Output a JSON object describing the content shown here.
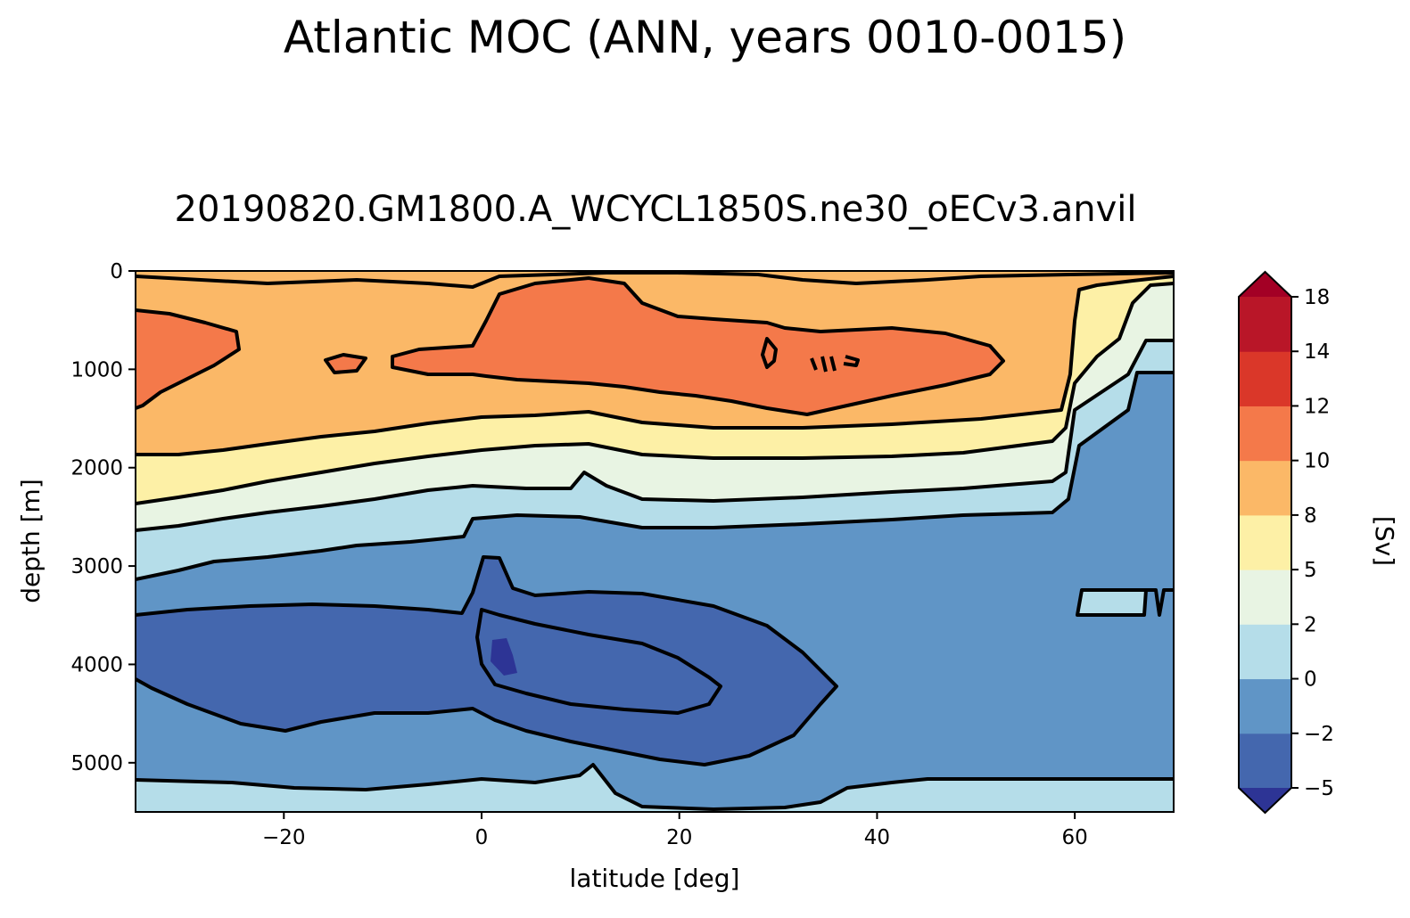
{
  "figure": {
    "title": "Atlantic MOC (ANN, years 0010-0015)",
    "subtitle": "20190820.GM1800.A_WCYCL1850S.ne30_oECv3.anvil"
  },
  "chart_data": {
    "type": "heatmap",
    "title": "20190820.GM1800.A_WCYCL1850S.ne30_oECv3.anvil",
    "xlabel": "latitude [deg]",
    "ylabel": "depth [m]",
    "xlim": [
      -35,
      70
    ],
    "ylim": [
      5500,
      0
    ],
    "x_ticks": [
      -20,
      0,
      20,
      40,
      60
    ],
    "x_tick_labels": [
      "−20",
      "0",
      "20",
      "40",
      "60"
    ],
    "y_ticks": [
      0,
      1000,
      2000,
      3000,
      4000,
      5000
    ],
    "y_tick_labels": [
      "0",
      "1000",
      "2000",
      "3000",
      "4000",
      "5000"
    ],
    "colorbar": {
      "label": "[Sv]",
      "levels": [
        -5,
        -2,
        0,
        2,
        5,
        8,
        10,
        12,
        14,
        18
      ],
      "tick_labels": [
        "−5",
        "−2",
        "0",
        "2",
        "5",
        "8",
        "10",
        "12",
        "14",
        "18"
      ],
      "colors": [
        "#4467ae",
        "#6095c6",
        "#b5dde9",
        "#e8f4e3",
        "#fdf0a6",
        "#fbb867",
        "#f4794a",
        "#da3729",
        "#b91628"
      ],
      "extend_min_color": "#2d3495",
      "extend_max_color": "#a30025"
    },
    "contour_line_color": "#000000",
    "features": [
      {
        "name": "upper overturning cell maximum",
        "value_range": [
          10,
          12
        ],
        "lat_range": [
          0,
          52
        ],
        "depth_range": [
          400,
          1400
        ]
      },
      {
        "name": "southern upper cell",
        "value_range": [
          10,
          12
        ],
        "lat_range": [
          -35,
          -25
        ],
        "depth_range": [
          400,
          1300
        ]
      },
      {
        "name": "abyssal cell",
        "value_range": [
          -5,
          -2
        ],
        "lat_range": [
          -35,
          36
        ],
        "depth_range": [
          3400,
          5000
        ]
      },
      {
        "name": "bottom water",
        "value_range": [
          0,
          2
        ],
        "lat_range": [
          -35,
          70
        ],
        "depth_range": [
          5150,
          5500
        ]
      }
    ]
  }
}
